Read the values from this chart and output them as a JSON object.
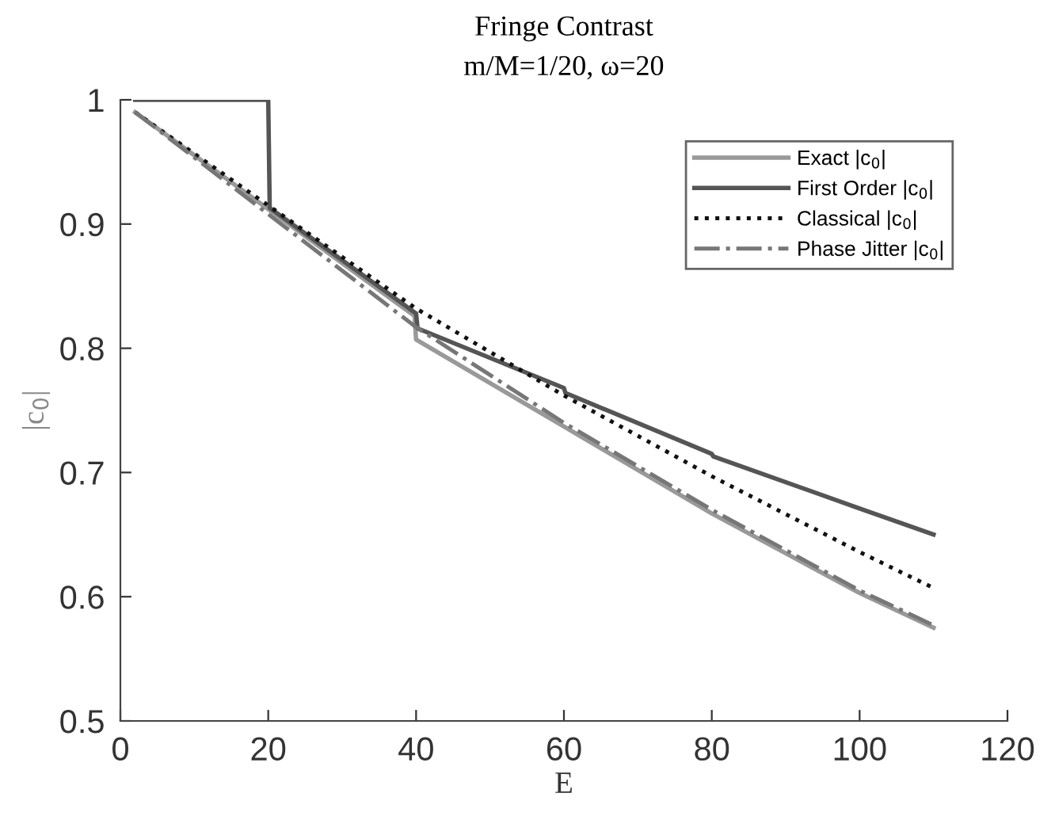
{
  "chart_data": {
    "type": "line",
    "title": "Fringe Contrast",
    "subtitle": "m/M=1/20, ω=20",
    "xlabel": "E",
    "ylabel": "|c$_{0}$|",
    "xlim": [
      0,
      120
    ],
    "xticks": [
      0,
      20,
      40,
      60,
      80,
      100,
      120
    ],
    "ylim": [
      0.5,
      1
    ],
    "yticks": [
      0.5,
      0.6,
      0.7,
      0.8,
      0.9,
      1
    ],
    "grid": false,
    "legend": "top right",
    "series": [
      {
        "name": "Exact |c$_{0}$|",
        "color": "#999999",
        "line_style": "solid",
        "x": [
          2,
          20,
          39.8,
          40,
          60,
          80,
          100,
          110
        ],
        "values": [
          0.99,
          0.912,
          0.826,
          0.807,
          0.737,
          0.667,
          0.603,
          0.575
        ]
      },
      {
        "name": "First Order |c$_{0}$|",
        "color": "#555555",
        "line_style": "solid",
        "x": [
          2,
          20,
          20.2,
          40,
          40.2,
          60,
          60.2,
          80,
          80.2,
          100,
          110
        ],
        "values": [
          1,
          1,
          0.913,
          0.828,
          0.816,
          0.768,
          0.764,
          0.715,
          0.713,
          0.671,
          0.65
        ]
      },
      {
        "name": "Classical |c$_{0}$|",
        "color": "#111111",
        "line_style": "dotted",
        "x": [
          2,
          20,
          40,
          60,
          80,
          100,
          110
        ],
        "values": [
          0.99,
          0.915,
          0.832,
          0.762,
          0.697,
          0.636,
          0.607
        ]
      },
      {
        "name": "Phase Jitter |c$_{0}$|",
        "color": "#777777",
        "line_style": "dashdot",
        "x": [
          2,
          20,
          40,
          60,
          80,
          100,
          110
        ],
        "values": [
          0.99,
          0.908,
          0.817,
          0.74,
          0.67,
          0.605,
          0.577
        ]
      }
    ]
  }
}
